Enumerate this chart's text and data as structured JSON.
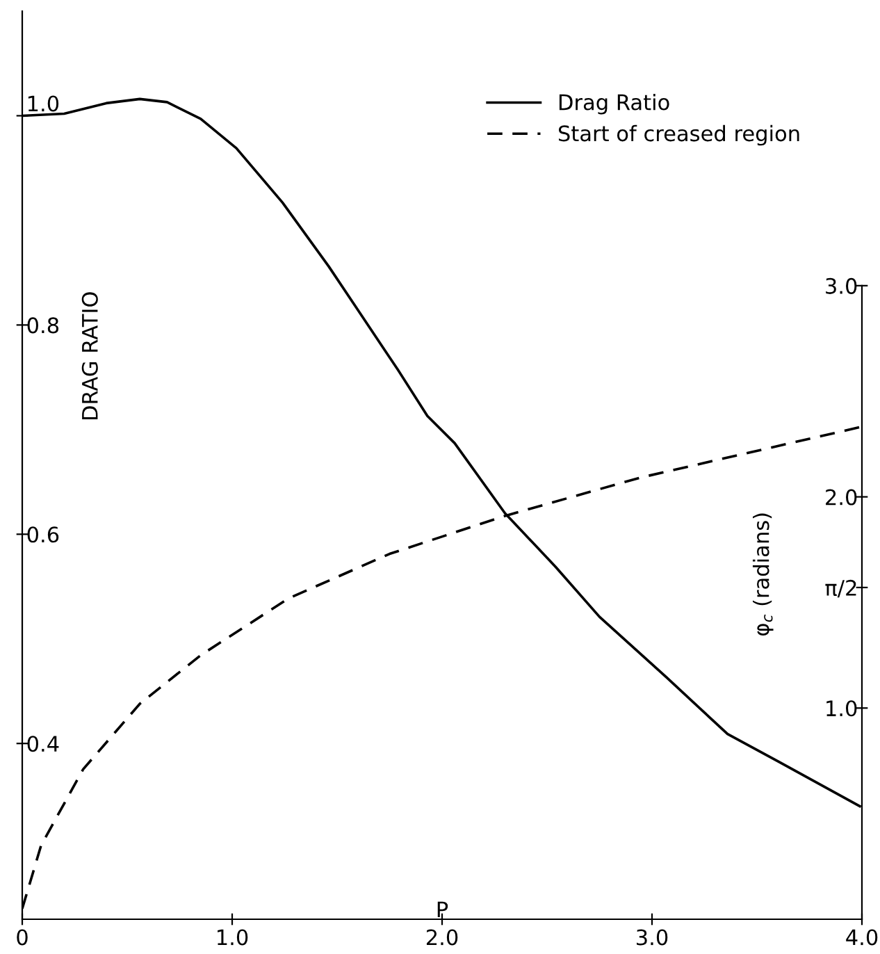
{
  "chart_data": {
    "type": "line",
    "xlabel": "P",
    "ylabel": "DRAG RATIO",
    "y2label": "φ$_{c}$ (radians)",
    "xlim": [
      0,
      4.0
    ],
    "xticks": [
      0,
      {
        "value": 1.0,
        "label": "1.0"
      },
      {
        "value": 2.0,
        "label": "2.0"
      },
      {
        "value": 3.0,
        "label": "3.0"
      },
      {
        "value": 4.0,
        "label": "4.0"
      }
    ],
    "ylim": [
      0.232,
      1.1
    ],
    "yticks": [
      0.4,
      0.6,
      0.8,
      {
        "value": 1.0,
        "label": "1.0"
      }
    ],
    "y2lim": [
      0,
      4.3
    ],
    "y2ticks": [
      {
        "value": 1.0,
        "label": "1.0"
      },
      {
        "value": 1.5708,
        "label": "π/2"
      },
      {
        "value": 2.0,
        "label": "2.0"
      },
      {
        "value": 3.0,
        "label": "3.0"
      }
    ],
    "legend": "top right",
    "grid": false,
    "series": [
      {
        "name": "Drag Ratio",
        "color": "#000000",
        "line_style": "solid",
        "x": [
          0,
          0.2,
          0.4,
          0.56,
          0.69,
          0.85,
          1.02,
          1.24,
          1.46,
          1.79,
          1.93,
          2.06,
          2.3,
          2.54,
          2.75,
          3.07,
          3.36,
          3.6,
          3.99
        ],
        "values": [
          1.0,
          1.002,
          1.012,
          1.016,
          1.013,
          0.997,
          0.969,
          0.917,
          0.856,
          0.757,
          0.713,
          0.687,
          0.62,
          0.569,
          0.521,
          0.463,
          0.409,
          0.383,
          0.34
        ]
      },
      {
        "name": "Start of creased region",
        "color": "#000000",
        "line_style": "dashed",
        "axis": "y2",
        "x": [
          0,
          0.09,
          0.29,
          0.56,
          0.85,
          1.27,
          1.75,
          2.3,
          2.94,
          3.99
        ],
        "values": [
          0.05,
          0.35,
          0.71,
          1.02,
          1.25,
          1.52,
          1.73,
          1.91,
          2.09,
          2.33
        ]
      }
    ]
  }
}
